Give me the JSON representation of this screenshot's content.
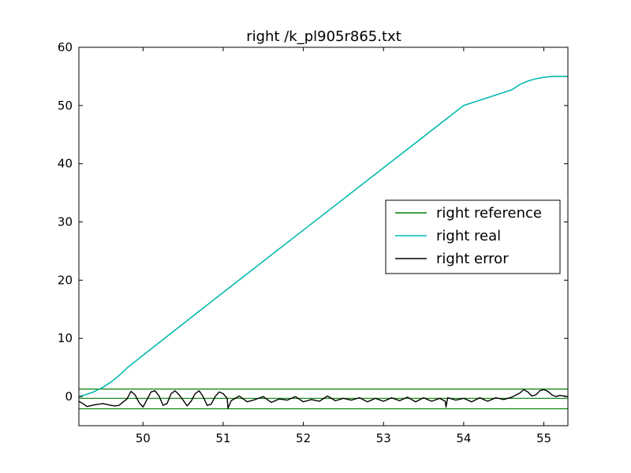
{
  "chart_data": {
    "type": "line",
    "title": "right /k_pl905r865.txt",
    "xlabel": "",
    "ylabel": "",
    "xlim": [
      49.2,
      55.3
    ],
    "ylim": [
      -5,
      60
    ],
    "xticks": [
      50,
      51,
      52,
      53,
      54,
      55
    ],
    "yticks": [
      0,
      10,
      20,
      30,
      40,
      50,
      60
    ],
    "grid": false,
    "legend": {
      "position": "center-right",
      "entries": [
        {
          "label": "right reference",
          "color": "#008000"
        },
        {
          "label": "right real",
          "color": "#00bfbf"
        },
        {
          "label": "right error",
          "color": "#000000"
        }
      ]
    },
    "reference_lines": [
      {
        "y": 1.3,
        "color": "#008000"
      },
      {
        "y": -0.3,
        "color": "#008000"
      },
      {
        "y": -2.1,
        "color": "#008000"
      }
    ],
    "series": [
      {
        "name": "right reference",
        "color": "#008000",
        "x": [
          49.2,
          49.3,
          49.4,
          49.5,
          49.6,
          49.7,
          49.8,
          50.0,
          51.0,
          52.0,
          53.0,
          54.0,
          54.6,
          54.7,
          54.8,
          54.9,
          55.0,
          55.1,
          55.2,
          55.3
        ],
        "y": [
          0.0,
          0.4,
          0.9,
          1.6,
          2.5,
          3.6,
          4.9,
          7.1,
          17.9,
          28.6,
          39.3,
          50.0,
          52.7,
          53.6,
          54.2,
          54.6,
          54.85,
          55.0,
          55.0,
          55.0
        ]
      },
      {
        "name": "right real",
        "color": "#00bfbf",
        "x": [
          49.2,
          49.3,
          49.4,
          49.5,
          49.6,
          49.7,
          49.8,
          50.0,
          51.0,
          52.0,
          53.0,
          54.0,
          54.6,
          54.7,
          54.8,
          54.9,
          55.0,
          55.1,
          55.2,
          55.3
        ],
        "y": [
          0.0,
          0.4,
          0.9,
          1.6,
          2.5,
          3.6,
          4.9,
          7.1,
          17.9,
          28.6,
          39.3,
          50.0,
          52.7,
          53.6,
          54.2,
          54.6,
          54.85,
          55.0,
          55.0,
          55.0
        ]
      },
      {
        "name": "right error",
        "color": "#000000",
        "x": [
          49.2,
          49.25,
          49.3,
          49.4,
          49.5,
          49.6,
          49.65,
          49.7,
          49.8,
          49.85,
          49.9,
          49.95,
          50.0,
          50.05,
          50.1,
          50.15,
          50.2,
          50.25,
          50.3,
          50.35,
          50.4,
          50.45,
          50.5,
          50.55,
          50.6,
          50.65,
          50.7,
          50.75,
          50.8,
          50.85,
          50.9,
          50.95,
          51.0,
          51.05,
          51.06,
          51.1,
          51.2,
          51.3,
          51.4,
          51.5,
          51.6,
          51.7,
          51.8,
          51.9,
          52.0,
          52.1,
          52.2,
          52.3,
          52.4,
          52.5,
          52.6,
          52.7,
          52.8,
          52.9,
          53.0,
          53.1,
          53.2,
          53.3,
          53.4,
          53.5,
          53.6,
          53.7,
          53.77,
          53.78,
          53.8,
          53.9,
          54.0,
          54.1,
          54.2,
          54.3,
          54.4,
          54.5,
          54.6,
          54.7,
          54.75,
          54.8,
          54.85,
          54.9,
          54.95,
          55.0,
          55.05,
          55.1,
          55.15,
          55.2,
          55.25,
          55.3
        ],
        "y": [
          -0.8,
          -1.2,
          -1.7,
          -1.4,
          -1.2,
          -1.5,
          -1.6,
          -1.5,
          -0.4,
          0.9,
          0.3,
          -1.0,
          -1.8,
          -0.5,
          0.8,
          1.0,
          0.1,
          -1.5,
          -1.2,
          0.5,
          1.0,
          0.3,
          -0.6,
          -1.6,
          -0.8,
          0.5,
          1.0,
          0.0,
          -1.5,
          -1.3,
          0.0,
          0.8,
          0.5,
          -0.3,
          -2.0,
          -0.7,
          0.1,
          -0.9,
          -0.5,
          0.0,
          -1.0,
          -0.4,
          -0.6,
          0.0,
          -0.9,
          -0.5,
          -0.8,
          0.1,
          -0.7,
          -0.3,
          -0.6,
          -0.2,
          -0.9,
          -0.3,
          -0.8,
          -0.2,
          -0.7,
          -0.1,
          -0.9,
          -0.2,
          -0.8,
          -0.3,
          -0.8,
          -1.8,
          -0.2,
          -0.6,
          -0.3,
          -0.9,
          -0.2,
          -0.8,
          -0.2,
          -0.5,
          -0.1,
          0.6,
          1.2,
          0.8,
          0.1,
          0.3,
          1.0,
          1.2,
          0.9,
          0.3,
          0.0,
          0.2,
          0.1,
          0.0
        ]
      }
    ]
  }
}
